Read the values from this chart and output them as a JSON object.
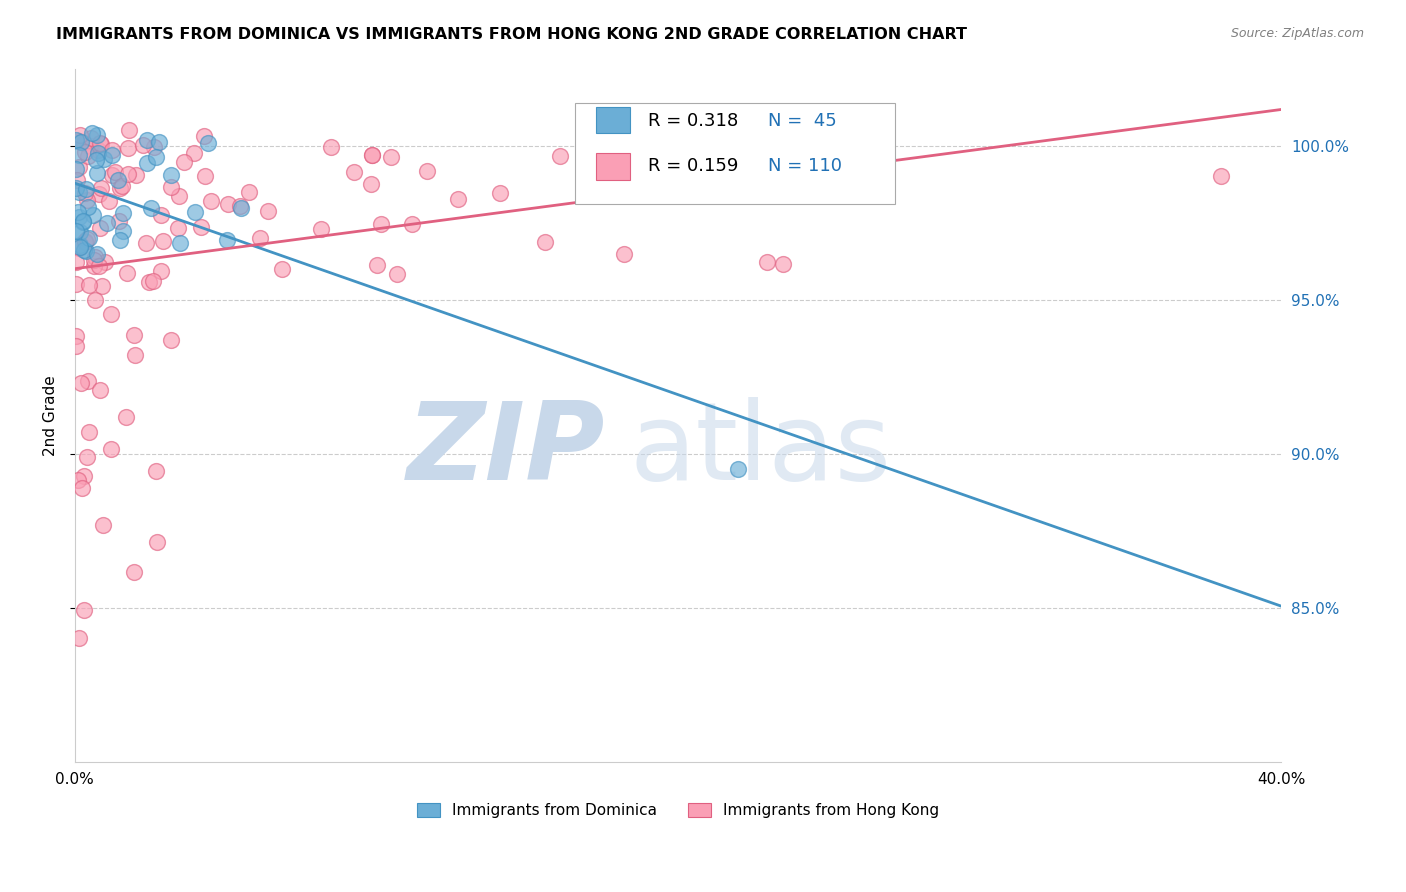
{
  "title": "IMMIGRANTS FROM DOMINICA VS IMMIGRANTS FROM HONG KONG 2ND GRADE CORRELATION CHART",
  "source": "Source: ZipAtlas.com",
  "ylabel": "2nd Grade",
  "legend_label1": "Immigrants from Dominica",
  "legend_label2": "Immigrants from Hong Kong",
  "R1": 0.318,
  "N1": 45,
  "R2": 0.159,
  "N2": 110,
  "color_blue": "#6baed6",
  "color_pink": "#fa9fb5",
  "color_blue_line": "#4393c3",
  "color_pink_line": "#e06080",
  "color_blue_text": "#2171b5",
  "watermark_color": "#c8d8ea",
  "xlim": [
    0.0,
    0.4
  ],
  "ylim": [
    0.8,
    1.025
  ]
}
